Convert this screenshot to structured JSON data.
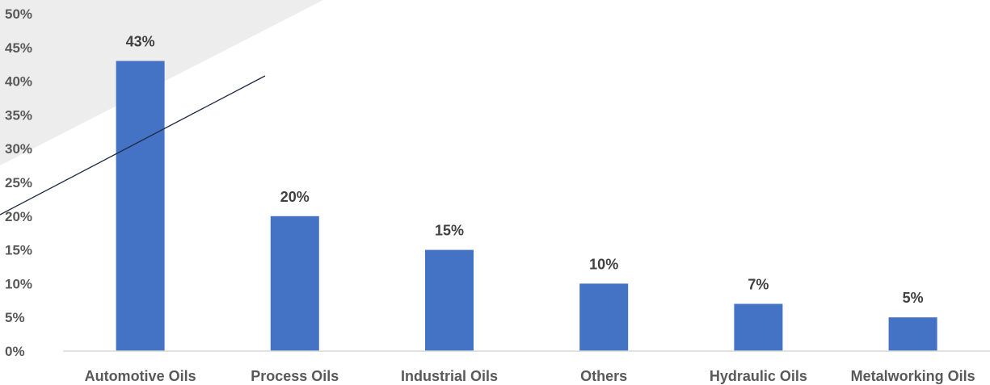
{
  "chart_data": {
    "type": "bar",
    "categories": [
      "Automotive Oils",
      "Process Oils",
      "Industrial Oils",
      "Others",
      "Hydraulic Oils",
      "Metalworking Oils"
    ],
    "values": [
      43,
      20,
      15,
      10,
      7,
      5
    ],
    "data_labels": [
      "43%",
      "20%",
      "15%",
      "10%",
      "7%",
      "5%"
    ],
    "ylim": [
      0,
      50
    ],
    "y_ticks": [
      0,
      5,
      10,
      15,
      20,
      25,
      30,
      35,
      40,
      45,
      50
    ],
    "y_tick_labels": [
      "0%",
      "5%",
      "10%",
      "15%",
      "20%",
      "25%",
      "30%",
      "35%",
      "40%",
      "45%",
      "50%"
    ],
    "grid": false,
    "legend": "none",
    "bar_color": "#4472C4",
    "axis_color": "#D9D9D9",
    "text_color": "#595959",
    "decoration_color": "#EDEDED"
  }
}
